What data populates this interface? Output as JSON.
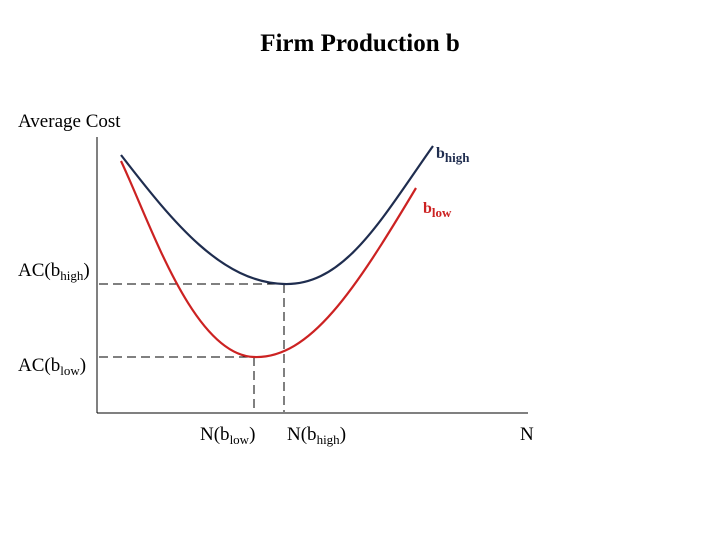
{
  "title": "Firm Production b",
  "axes": {
    "y_label": "Average Cost",
    "x_label": "N"
  },
  "curves": {
    "high": {
      "base": "b",
      "sub": "high",
      "color": "#1f2d4f"
    },
    "low": {
      "base": "b",
      "sub": "low",
      "color": "#cc2222"
    }
  },
  "y_markers": {
    "high": {
      "prefix": "AC(b",
      "sub": "high",
      "suffix": ")"
    },
    "low": {
      "prefix": "AC(b",
      "sub": "low",
      "suffix": ")"
    }
  },
  "x_markers": {
    "low": {
      "prefix": "N(b",
      "sub": "low",
      "suffix": ")"
    },
    "high": {
      "prefix": "N(b",
      "sub": "high",
      "suffix": ")"
    }
  },
  "colors": {
    "axis": "#000000",
    "guides": "#000000"
  }
}
